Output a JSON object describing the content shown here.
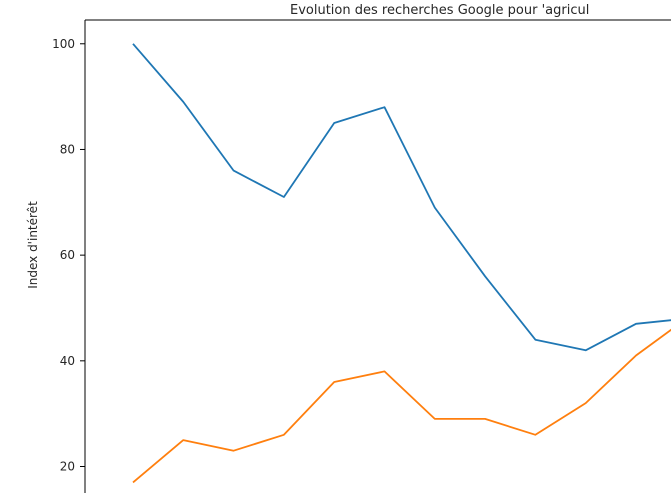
{
  "chart_data": {
    "type": "line",
    "title": "Evolution des recherches Google pour 'agricul",
    "xlabel": "",
    "ylabel": "Index d'intérêt",
    "ylim": [
      16.5,
      104.5
    ],
    "yticks": [
      20,
      40,
      60,
      80,
      100
    ],
    "x": [
      0,
      1,
      2,
      3,
      4,
      5,
      6,
      7,
      8,
      9,
      10,
      11
    ],
    "grid": false,
    "series": [
      {
        "color": "#1f77b4",
        "values": [
          100,
          89,
          76,
          71,
          85,
          88,
          69,
          56,
          44,
          42,
          47,
          48
        ]
      },
      {
        "color": "#ff7f0e",
        "values": [
          17,
          25,
          23,
          26,
          36,
          38,
          29,
          29,
          26,
          32,
          41,
          48
        ]
      }
    ]
  }
}
